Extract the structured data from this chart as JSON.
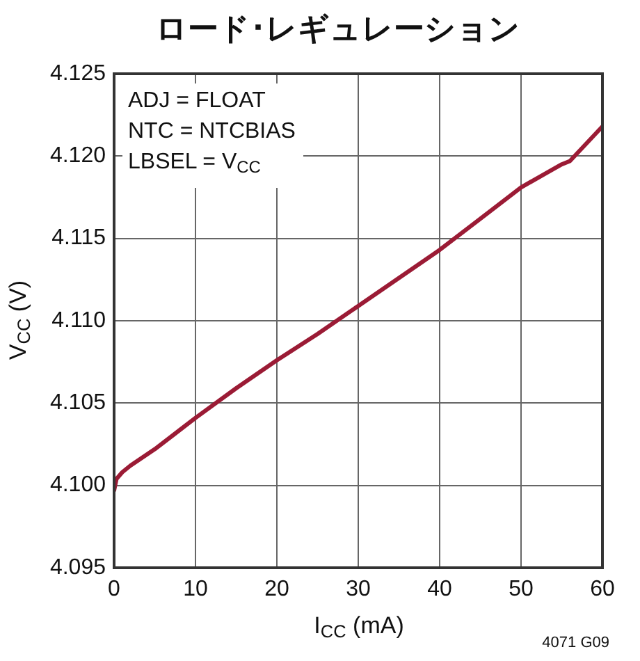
{
  "chart_data": {
    "type": "line",
    "title": "ロード･レギュレーション",
    "xlabel": "I$_{CC}$ (mA)",
    "ylabel": "V$_{CC}$ (V)",
    "annotations": [
      "ADJ = FLOAT\nNTC = NTCBIAS\nLBSEL = V$_{CC}$",
      "4071 G09"
    ],
    "x": [
      0,
      0.3,
      1,
      2,
      5,
      10,
      15,
      20,
      25,
      30,
      35,
      40,
      45,
      50,
      55,
      56,
      60
    ],
    "series": [
      {
        "color": "#9b1b35",
        "values": [
          4.0997,
          4.1004,
          4.1008,
          4.1012,
          4.1022,
          4.1041,
          4.1059,
          4.1076,
          4.1092,
          4.1109,
          4.1126,
          4.1143,
          4.1162,
          4.1181,
          4.1195,
          4.1197,
          4.1218
        ]
      }
    ],
    "xlim": [
      0,
      60
    ],
    "xticks": [
      0,
      10,
      20,
      30,
      40,
      50,
      60
    ],
    "ylim": [
      4.095,
      4.125
    ],
    "yticks": [
      4.095,
      {
        "value": 4.1,
        "label": "4.100"
      },
      4.105,
      {
        "value": 4.11,
        "label": "4.110"
      },
      4.115,
      {
        "value": 4.12,
        "label": "4.120"
      },
      4.125
    ],
    "grid": true,
    "legend": false,
    "marker": "none",
    "line_style": "solid"
  }
}
